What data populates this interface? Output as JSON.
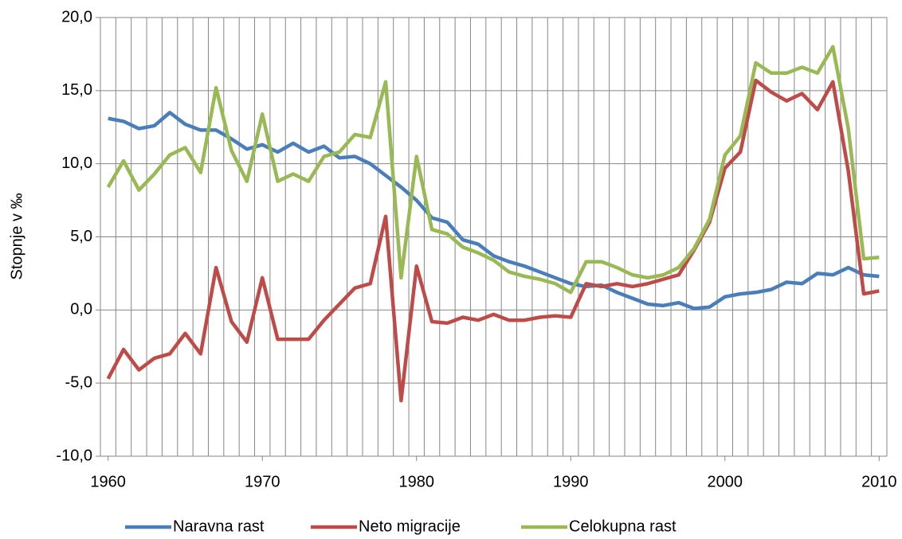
{
  "chart_data": {
    "type": "line",
    "y_label": "Stopnje v ‰",
    "x": [
      1960,
      1961,
      1962,
      1963,
      1964,
      1965,
      1966,
      1967,
      1968,
      1969,
      1970,
      1971,
      1972,
      1973,
      1974,
      1975,
      1976,
      1977,
      1978,
      1979,
      1980,
      1981,
      1982,
      1983,
      1984,
      1985,
      1986,
      1987,
      1988,
      1989,
      1990,
      1991,
      1992,
      1993,
      1994,
      1995,
      1996,
      1997,
      1998,
      1999,
      2000,
      2001,
      2002,
      2003,
      2004,
      2005,
      2006,
      2007,
      2008,
      2009,
      2010
    ],
    "xlim": [
      1959.5,
      2010.5
    ],
    "xticks": [
      1960,
      1970,
      1980,
      1990,
      2000,
      2010
    ],
    "ylim": [
      -10,
      20
    ],
    "yticks": [
      {
        "value": -10,
        "label": "-10,0"
      },
      {
        "value": -5,
        "label": "-5,0"
      },
      {
        "value": 0,
        "label": "0,0"
      },
      {
        "value": 5,
        "label": "5,0"
      },
      {
        "value": 10,
        "label": "10,0"
      },
      {
        "value": 15,
        "label": "15,0"
      },
      {
        "value": 20,
        "label": "20,0"
      }
    ],
    "grid": true,
    "legend": "bottom",
    "series": [
      {
        "name": "Naravna rast",
        "color": "#4a7ebb",
        "values": [
          13.1,
          12.9,
          12.4,
          12.6,
          13.5,
          12.7,
          12.3,
          12.3,
          11.7,
          11.0,
          11.3,
          10.8,
          11.4,
          10.8,
          11.2,
          10.4,
          10.5,
          10.0,
          9.2,
          8.4,
          7.5,
          6.3,
          6.0,
          4.8,
          4.5,
          3.7,
          3.3,
          3.0,
          2.6,
          2.2,
          1.8,
          1.6,
          1.7,
          1.2,
          0.8,
          0.4,
          0.3,
          0.5,
          0.1,
          0.2,
          0.9,
          1.1,
          1.2,
          1.4,
          1.9,
          1.8,
          2.5,
          2.4,
          2.9,
          2.4,
          2.3
        ]
      },
      {
        "name": "Neto migracije",
        "color": "#be4b48",
        "values": [
          -4.7,
          -2.7,
          -4.1,
          -3.3,
          -3.0,
          -1.6,
          -3.0,
          2.9,
          -0.8,
          -2.2,
          2.2,
          -2.0,
          -2.0,
          -2.0,
          -0.7,
          0.4,
          1.5,
          1.8,
          6.4,
          -6.2,
          3.0,
          -0.8,
          -0.9,
          -0.5,
          -0.7,
          -0.3,
          -0.7,
          -0.7,
          -0.5,
          -0.4,
          -0.5,
          1.8,
          1.6,
          1.8,
          1.6,
          1.8,
          2.1,
          2.4,
          4.1,
          6.0,
          9.7,
          10.8,
          15.7,
          14.9,
          14.3,
          14.8,
          13.7,
          15.6,
          9.5,
          1.1,
          1.3
        ]
      },
      {
        "name": "Celokupna rast",
        "color": "#98b954",
        "values": [
          8.4,
          10.2,
          8.2,
          9.3,
          10.6,
          11.1,
          9.4,
          15.2,
          10.9,
          8.8,
          13.4,
          8.8,
          9.3,
          8.8,
          10.5,
          10.8,
          12.0,
          11.8,
          15.6,
          2.2,
          10.5,
          5.5,
          5.2,
          4.3,
          3.9,
          3.4,
          2.6,
          2.3,
          2.1,
          1.8,
          1.2,
          3.3,
          3.3,
          2.9,
          2.4,
          2.2,
          2.4,
          2.9,
          4.2,
          6.2,
          10.6,
          11.9,
          16.9,
          16.2,
          16.2,
          16.6,
          16.2,
          18.0,
          12.4,
          3.5,
          3.6
        ]
      }
    ]
  }
}
